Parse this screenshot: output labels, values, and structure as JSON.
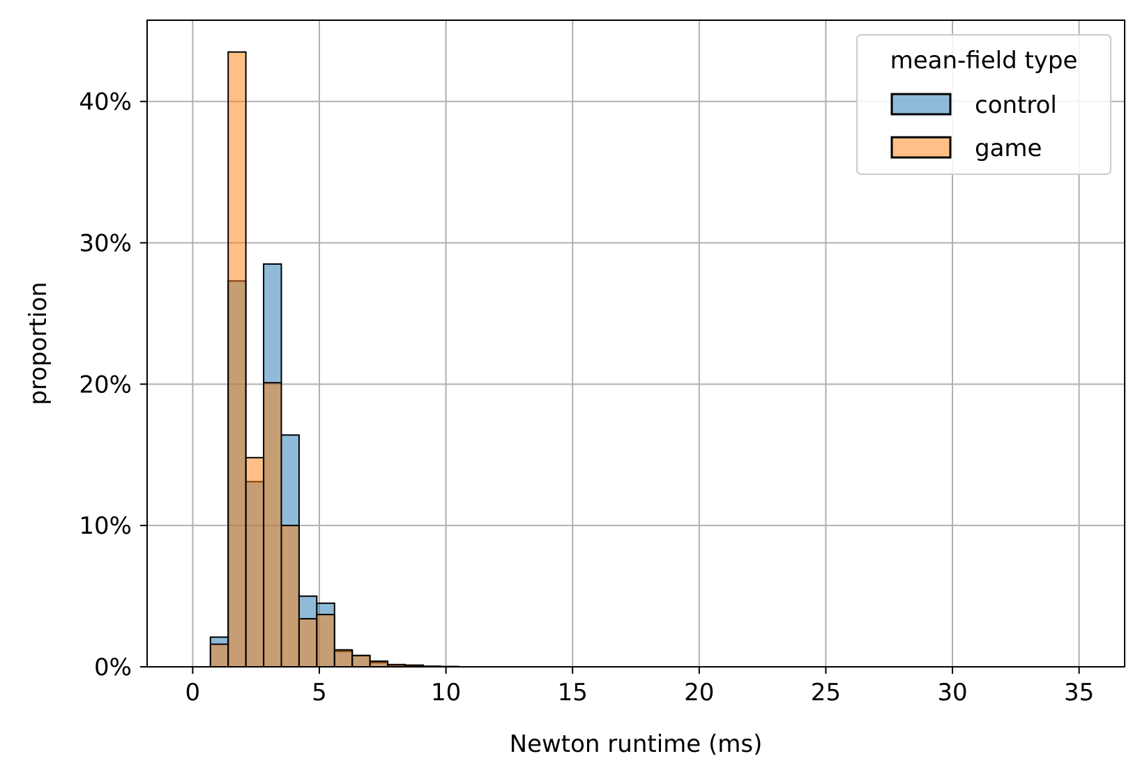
{
  "chart_data": {
    "type": "bar",
    "title": "",
    "xlabel": "Newton runtime (ms)",
    "ylabel": "proportion",
    "xlim": [
      -1.8,
      36.8
    ],
    "ylim": [
      0,
      0.4575
    ],
    "x_ticks": [
      0,
      5,
      10,
      15,
      20,
      25,
      30,
      35
    ],
    "x_tick_labels": [
      "0",
      "5",
      "10",
      "15",
      "20",
      "25",
      "30",
      "35"
    ],
    "y_ticks": [
      0,
      0.1,
      0.2,
      0.3,
      0.4
    ],
    "y_tick_labels": [
      "0%",
      "10%",
      "20%",
      "30%",
      "40%"
    ],
    "grid": true,
    "legend": {
      "title": "mean-field type",
      "placement": "top-right",
      "entries": [
        "control",
        "game"
      ]
    },
    "bin_edges": [
      0.7,
      1.4,
      2.1,
      2.8,
      3.5,
      4.2,
      4.9,
      5.6,
      6.3,
      7.0,
      7.7,
      8.4,
      9.1,
      9.8,
      10.5
    ],
    "series": [
      {
        "name": "control",
        "color": "#1f77b4",
        "values": [
          0.021,
          0.273,
          0.131,
          0.285,
          0.164,
          0.05,
          0.045,
          0.011,
          0.008,
          0.003,
          0.0012,
          0.0008,
          0.0004,
          0.0002
        ]
      },
      {
        "name": "game",
        "color": "#ff7f0e",
        "values": [
          0.016,
          0.435,
          0.148,
          0.201,
          0.1,
          0.034,
          0.037,
          0.012,
          0.008,
          0.004,
          0.0016,
          0.0012,
          0.0004,
          0.0002
        ]
      }
    ],
    "overlap_color": "#8c9a9f"
  }
}
